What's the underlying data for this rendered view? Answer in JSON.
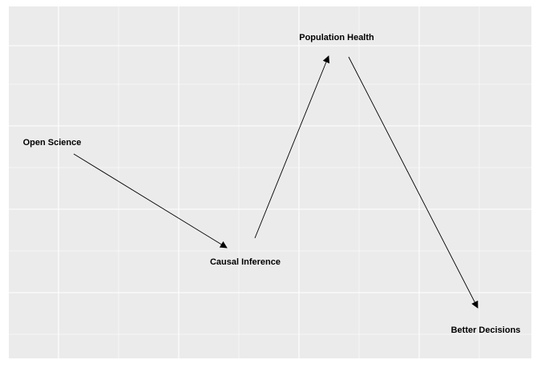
{
  "colors": {
    "panel_background": "#EBEBEB",
    "grid": "#FFFFFF",
    "text": "#000000",
    "edge": "#000000"
  },
  "nodes": {
    "open_science": "Open Science",
    "causal_inference": "Causal Inference",
    "population_health": "Population Health",
    "better_decisions": "Better Decisions"
  },
  "edges": [
    {
      "from": "Open Science",
      "to": "Causal Inference"
    },
    {
      "from": "Causal Inference",
      "to": "Population Health"
    },
    {
      "from": "Population Health",
      "to": "Better Decisions"
    }
  ]
}
